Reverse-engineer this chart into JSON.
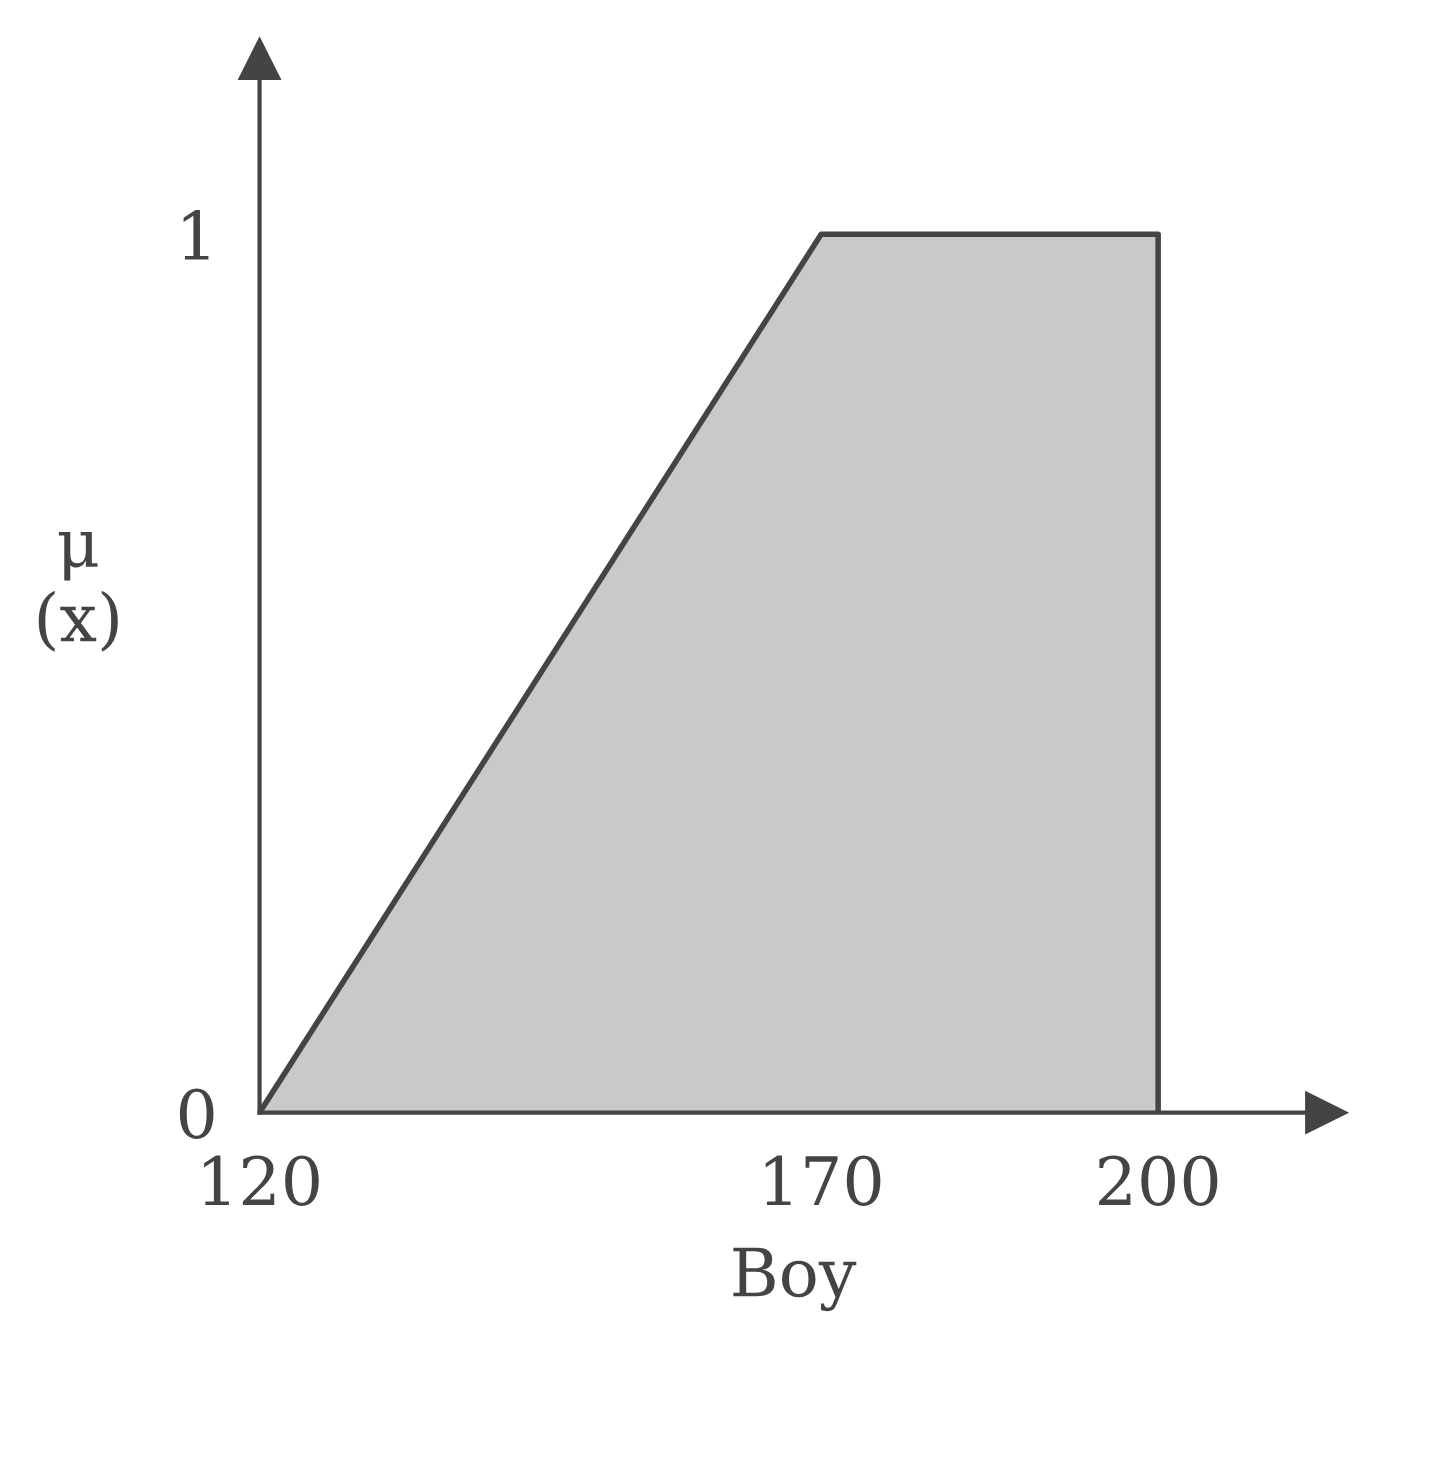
{
  "chart_data": {
    "type": "area",
    "xlabel": "Boy",
    "ylabel": "μ\n(x)",
    "x": [
      120,
      170,
      200,
      200
    ],
    "series": [
      {
        "color": "#c9c9c9",
        "values": [
          0,
          1,
          1,
          0
        ]
      }
    ],
    "xlim": [
      120,
      215
    ],
    "ylim": [
      0,
      1.2
    ],
    "xticks": [
      120,
      170,
      200
    ],
    "yticks": [
      0,
      1
    ],
    "grid": false,
    "legend": false
  }
}
